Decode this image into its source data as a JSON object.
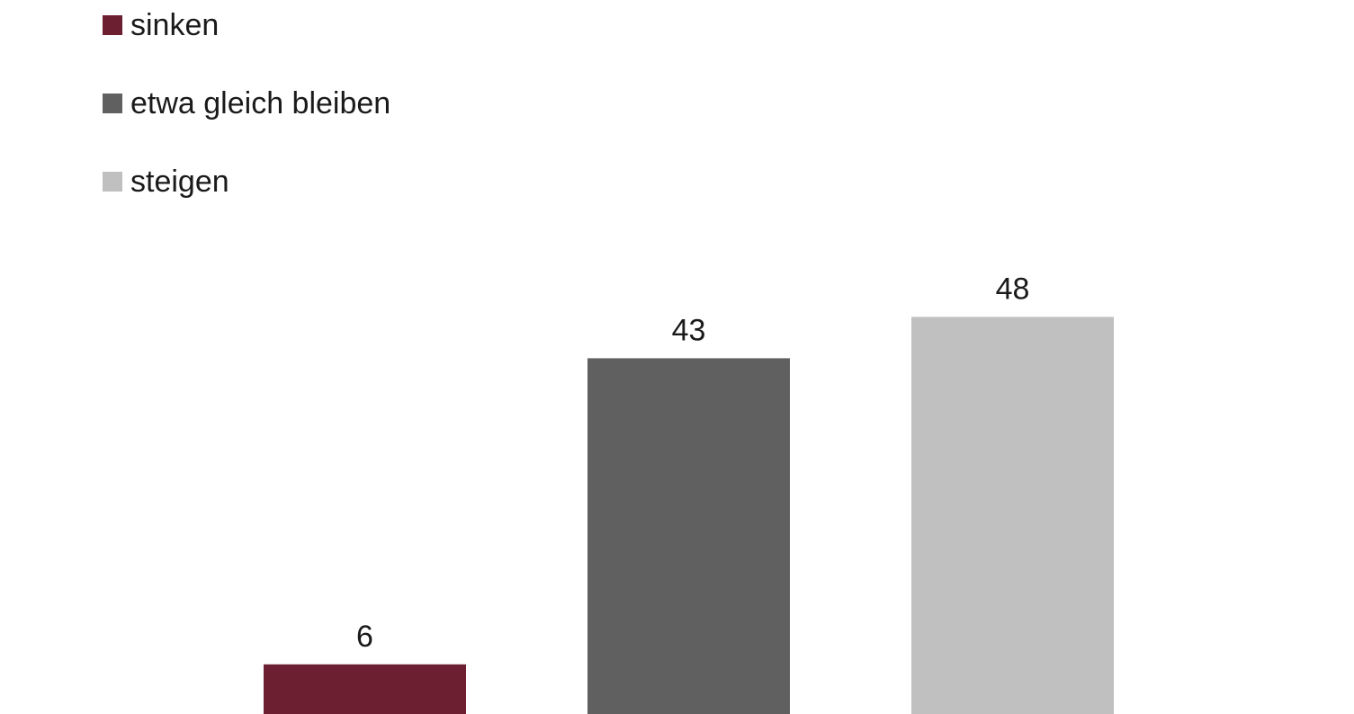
{
  "chart_data": {
    "type": "bar",
    "title": "",
    "xlabel": "",
    "ylabel": "",
    "ylim": [
      0,
      60
    ],
    "grid": false,
    "legend_position": "top-left",
    "series": [
      {
        "name": "sinken",
        "value": 6,
        "label": "6",
        "color": "#6b1f31"
      },
      {
        "name": "etwa gleich bleiben",
        "value": 43,
        "label": "43",
        "color": "#606060"
      },
      {
        "name": "steigen",
        "value": 48,
        "label": "48",
        "color": "#c0c0c0"
      }
    ]
  }
}
